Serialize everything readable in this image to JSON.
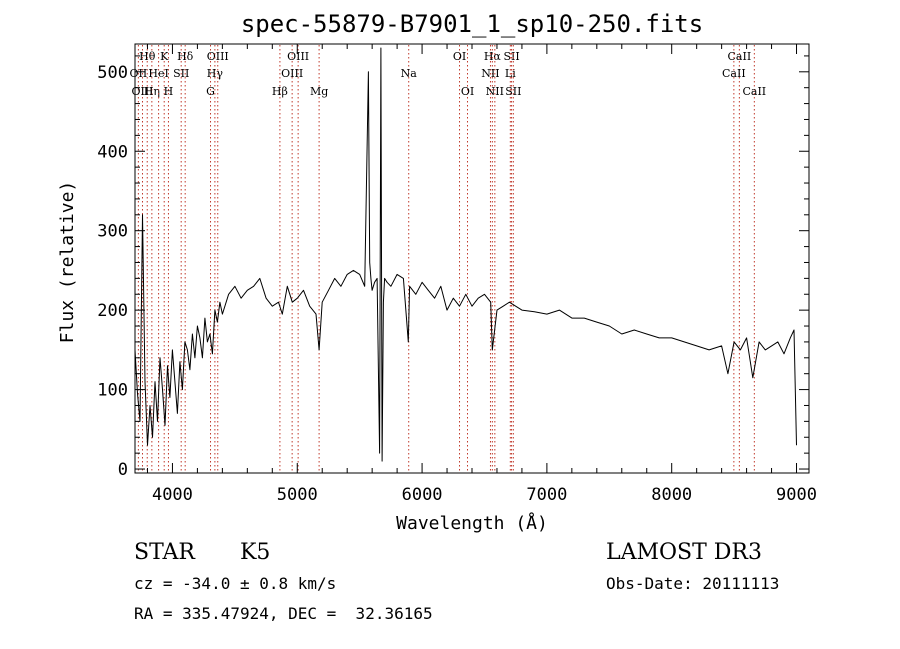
{
  "chart_data": {
    "type": "line",
    "title": "spec-55879-B7901_1_sp10-250.fits",
    "xlabel": "Wavelength (Å)",
    "ylabel": "Flux (relative)",
    "xlim": [
      3700,
      9100
    ],
    "ylim": [
      -5,
      535
    ],
    "x_ticks": [
      4000,
      5000,
      6000,
      7000,
      8000,
      9000
    ],
    "y_ticks": [
      0,
      100,
      200,
      300,
      400,
      500
    ],
    "grid": false,
    "series": [
      {
        "name": "flux",
        "x": [
          3700,
          3720,
          3740,
          3760,
          3780,
          3800,
          3820,
          3840,
          3860,
          3880,
          3900,
          3920,
          3940,
          3960,
          3980,
          4000,
          4020,
          4040,
          4060,
          4080,
          4100,
          4120,
          4140,
          4160,
          4180,
          4200,
          4220,
          4240,
          4260,
          4280,
          4300,
          4320,
          4340,
          4360,
          4380,
          4400,
          4450,
          4500,
          4550,
          4600,
          4650,
          4700,
          4750,
          4800,
          4850,
          4880,
          4920,
          4960,
          5000,
          5050,
          5100,
          5150,
          5175,
          5200,
          5250,
          5300,
          5350,
          5400,
          5450,
          5500,
          5540,
          5570,
          5580,
          5590,
          5600,
          5620,
          5640,
          5660,
          5670,
          5680,
          5690,
          5700,
          5720,
          5750,
          5800,
          5850,
          5890,
          5900,
          5950,
          6000,
          6050,
          6100,
          6150,
          6200,
          6250,
          6300,
          6350,
          6400,
          6450,
          6500,
          6550,
          6563,
          6600,
          6650,
          6700,
          6750,
          6800,
          6900,
          7000,
          7100,
          7200,
          7300,
          7400,
          7500,
          7600,
          7700,
          7800,
          7900,
          8000,
          8100,
          8200,
          8300,
          8400,
          8450,
          8500,
          8550,
          8600,
          8650,
          8700,
          8750,
          8800,
          8850,
          8900,
          8950,
          8980,
          9000
        ],
        "values": [
          150,
          95,
          60,
          320,
          110,
          30,
          80,
          40,
          110,
          60,
          140,
          100,
          55,
          130,
          90,
          150,
          110,
          70,
          135,
          100,
          160,
          150,
          125,
          170,
          140,
          180,
          165,
          140,
          190,
          160,
          170,
          145,
          200,
          185,
          210,
          195,
          220,
          230,
          215,
          225,
          230,
          240,
          215,
          205,
          210,
          195,
          230,
          210,
          215,
          225,
          205,
          195,
          150,
          210,
          225,
          240,
          230,
          245,
          250,
          245,
          230,
          500,
          260,
          240,
          225,
          235,
          240,
          20,
          530,
          10,
          210,
          240,
          235,
          230,
          245,
          240,
          160,
          230,
          220,
          235,
          225,
          215,
          230,
          200,
          215,
          205,
          220,
          205,
          215,
          220,
          210,
          150,
          200,
          205,
          210,
          205,
          200,
          198,
          195,
          200,
          190,
          190,
          185,
          180,
          170,
          175,
          170,
          165,
          165,
          160,
          155,
          150,
          155,
          120,
          160,
          150,
          165,
          115,
          160,
          150,
          155,
          160,
          145,
          165,
          175,
          30
        ]
      }
    ],
    "lines": [
      {
        "label": "Hθ",
        "x": 3798,
        "row": 0
      },
      {
        "label": "OII",
        "x": 3727,
        "row": 1
      },
      {
        "label": "OIII",
        "x": 3760,
        "row": 2
      },
      {
        "label": "Hη",
        "x": 3835,
        "row": 2
      },
      {
        "label": "K",
        "x": 3934,
        "row": 0
      },
      {
        "label": "HeI",
        "x": 3889,
        "row": 1
      },
      {
        "label": "H",
        "x": 3968,
        "row": 2
      },
      {
        "label": "SII",
        "x": 4070,
        "row": 1
      },
      {
        "label": "Hδ",
        "x": 4102,
        "row": 0
      },
      {
        "label": "OIII",
        "x": 4363,
        "row": 0
      },
      {
        "label": "Hγ",
        "x": 4340,
        "row": 1
      },
      {
        "label": "G",
        "x": 4305,
        "row": 2
      },
      {
        "label": "Hβ",
        "x": 4861,
        "row": 2
      },
      {
        "label": "OIII",
        "x": 5007,
        "row": 0
      },
      {
        "label": "OIII",
        "x": 4959,
        "row": 1
      },
      {
        "label": "Mg",
        "x": 5175,
        "row": 2
      },
      {
        "label": "Na",
        "x": 5893,
        "row": 1
      },
      {
        "label": "OI",
        "x": 6300,
        "row": 0
      },
      {
        "label": "OI",
        "x": 6364,
        "row": 2
      },
      {
        "label": "Hα",
        "x": 6563,
        "row": 0
      },
      {
        "label": "NII",
        "x": 6548,
        "row": 1
      },
      {
        "label": "NII",
        "x": 6583,
        "row": 2
      },
      {
        "label": "SII",
        "x": 6717,
        "row": 0
      },
      {
        "label": "Li",
        "x": 6707,
        "row": 1
      },
      {
        "label": "SII",
        "x": 6731,
        "row": 2
      },
      {
        "label": "CaII",
        "x": 8542,
        "row": 0
      },
      {
        "label": "CaII",
        "x": 8498,
        "row": 1
      },
      {
        "label": "CaII",
        "x": 8662,
        "row": 2
      }
    ]
  },
  "info": {
    "object_class": "STAR",
    "subclass": "K5",
    "survey": "LAMOST DR3",
    "cz": "cz = -34.0 ± 0.8 km/s",
    "obs_date": "Obs-Date: 20111113",
    "radec": "RA = 335.47924, DEC =  32.36165"
  }
}
